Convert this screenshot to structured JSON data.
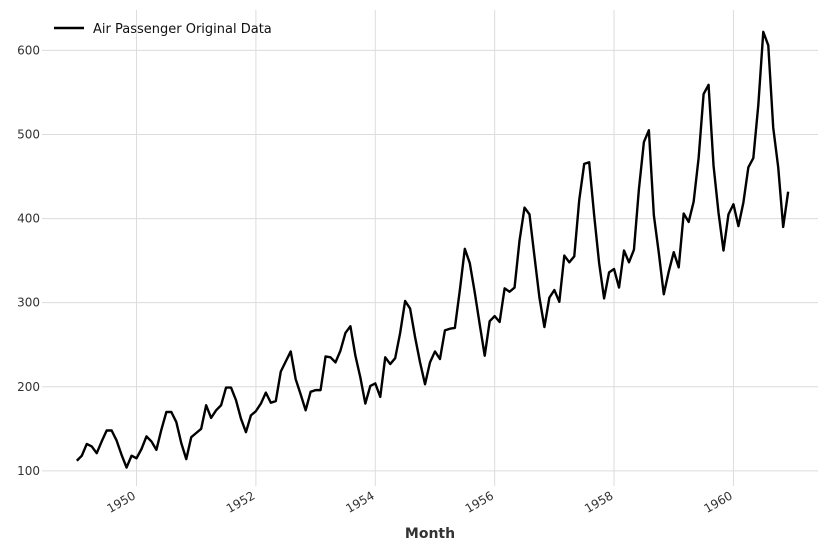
{
  "chart_data": {
    "type": "line",
    "title": "",
    "xlabel": "Month",
    "ylabel": "",
    "xlim": [
      "1948-06",
      "1961-06"
    ],
    "ylim": [
      82,
      648
    ],
    "grid": true,
    "legend_position": "top-left",
    "line_color": "#000000",
    "x_ticks": [
      "1950",
      "1952",
      "1954",
      "1956",
      "1958",
      "1960"
    ],
    "y_ticks": [
      100,
      200,
      300,
      400,
      500,
      600
    ],
    "series": [
      {
        "name": "Air Passenger Original Data",
        "x": [
          "1949-01",
          "1949-02",
          "1949-03",
          "1949-04",
          "1949-05",
          "1949-06",
          "1949-07",
          "1949-08",
          "1949-09",
          "1949-10",
          "1949-11",
          "1949-12",
          "1950-01",
          "1950-02",
          "1950-03",
          "1950-04",
          "1950-05",
          "1950-06",
          "1950-07",
          "1950-08",
          "1950-09",
          "1950-10",
          "1950-11",
          "1950-12",
          "1951-01",
          "1951-02",
          "1951-03",
          "1951-04",
          "1951-05",
          "1951-06",
          "1951-07",
          "1951-08",
          "1951-09",
          "1951-10",
          "1951-11",
          "1951-12",
          "1952-01",
          "1952-02",
          "1952-03",
          "1952-04",
          "1952-05",
          "1952-06",
          "1952-07",
          "1952-08",
          "1952-09",
          "1952-10",
          "1952-11",
          "1952-12",
          "1953-01",
          "1953-02",
          "1953-03",
          "1953-04",
          "1953-05",
          "1953-06",
          "1953-07",
          "1953-08",
          "1953-09",
          "1953-10",
          "1953-11",
          "1953-12",
          "1954-01",
          "1954-02",
          "1954-03",
          "1954-04",
          "1954-05",
          "1954-06",
          "1954-07",
          "1954-08",
          "1954-09",
          "1954-10",
          "1954-11",
          "1954-12",
          "1955-01",
          "1955-02",
          "1955-03",
          "1955-04",
          "1955-05",
          "1955-06",
          "1955-07",
          "1955-08",
          "1955-09",
          "1955-10",
          "1955-11",
          "1955-12",
          "1956-01",
          "1956-02",
          "1956-03",
          "1956-04",
          "1956-05",
          "1956-06",
          "1956-07",
          "1956-08",
          "1956-09",
          "1956-10",
          "1956-11",
          "1956-12",
          "1957-01",
          "1957-02",
          "1957-03",
          "1957-04",
          "1957-05",
          "1957-06",
          "1957-07",
          "1957-08",
          "1957-09",
          "1957-10",
          "1957-11",
          "1957-12",
          "1958-01",
          "1958-02",
          "1958-03",
          "1958-04",
          "1958-05",
          "1958-06",
          "1958-07",
          "1958-08",
          "1958-09",
          "1958-10",
          "1958-11",
          "1958-12",
          "1959-01",
          "1959-02",
          "1959-03",
          "1959-04",
          "1959-05",
          "1959-06",
          "1959-07",
          "1959-08",
          "1959-09",
          "1959-10",
          "1959-11",
          "1959-12",
          "1960-01",
          "1960-02",
          "1960-03",
          "1960-04",
          "1960-05",
          "1960-06",
          "1960-07",
          "1960-08",
          "1960-09",
          "1960-10",
          "1960-11",
          "1960-12"
        ],
        "values": [
          112,
          118,
          132,
          129,
          121,
          135,
          148,
          148,
          136,
          119,
          104,
          118,
          115,
          126,
          141,
          135,
          125,
          149,
          170,
          170,
          158,
          133,
          114,
          140,
          145,
          150,
          178,
          163,
          172,
          178,
          199,
          199,
          184,
          162,
          146,
          166,
          171,
          180,
          193,
          181,
          183,
          218,
          230,
          242,
          209,
          191,
          172,
          194,
          196,
          196,
          236,
          235,
          229,
          243,
          264,
          272,
          237,
          211,
          180,
          201,
          204,
          188,
          235,
          227,
          234,
          264,
          302,
          293,
          259,
          229,
          203,
          229,
          242,
          233,
          267,
          269,
          270,
          315,
          364,
          347,
          312,
          274,
          237,
          278,
          284,
          277,
          317,
          313,
          318,
          374,
          413,
          405,
          355,
          306,
          271,
          306,
          315,
          301,
          356,
          348,
          355,
          422,
          465,
          467,
          404,
          347,
          305,
          336,
          340,
          318,
          362,
          348,
          363,
          435,
          491,
          505,
          404,
          359,
          310,
          337,
          360,
          342,
          406,
          396,
          420,
          472,
          548,
          559,
          463,
          407,
          362,
          405,
          417,
          391,
          419,
          461,
          472,
          535,
          622,
          606,
          508,
          461,
          390,
          432
        ]
      }
    ]
  }
}
